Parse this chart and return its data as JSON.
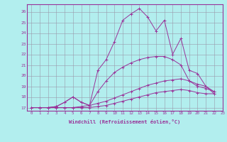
{
  "xlabel": "Windchill (Refroidissement éolien,°C)",
  "xlim": [
    -0.5,
    23
  ],
  "ylim": [
    16.7,
    26.7
  ],
  "yticks": [
    17,
    18,
    19,
    20,
    21,
    22,
    23,
    24,
    25,
    26
  ],
  "xticks": [
    0,
    1,
    2,
    3,
    4,
    5,
    6,
    7,
    8,
    9,
    10,
    11,
    12,
    13,
    14,
    15,
    16,
    17,
    18,
    19,
    20,
    21,
    22,
    23
  ],
  "bg_color": "#b2eeee",
  "line_color": "#993399",
  "grid_color": "#9999aa",
  "series": [
    [
      17.0,
      17.0,
      17.0,
      17.0,
      17.0,
      17.0,
      17.0,
      17.0,
      17.1,
      17.2,
      17.4,
      17.6,
      17.8,
      18.0,
      18.2,
      18.4,
      18.5,
      18.6,
      18.7,
      18.6,
      18.4,
      18.3,
      18.3
    ],
    [
      17.0,
      17.0,
      17.0,
      17.0,
      17.0,
      17.0,
      17.1,
      17.2,
      17.4,
      17.6,
      17.9,
      18.2,
      18.5,
      18.8,
      19.1,
      19.3,
      19.5,
      19.6,
      19.7,
      19.5,
      19.0,
      18.8,
      18.5
    ],
    [
      17.0,
      17.0,
      17.0,
      17.1,
      17.5,
      18.0,
      17.5,
      17.2,
      18.5,
      19.5,
      20.3,
      20.8,
      21.2,
      21.5,
      21.7,
      21.8,
      21.8,
      21.5,
      21.0,
      19.5,
      19.2,
      19.0,
      18.5
    ],
    [
      17.0,
      17.0,
      17.0,
      17.1,
      17.5,
      18.0,
      17.5,
      17.2,
      20.5,
      21.5,
      23.2,
      25.2,
      25.8,
      26.3,
      25.5,
      24.2,
      25.2,
      22.0,
      23.5,
      20.5,
      20.2,
      19.0,
      18.3
    ]
  ]
}
